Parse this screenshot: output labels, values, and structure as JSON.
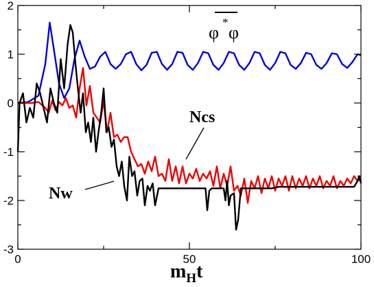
{
  "chart_data": {
    "type": "line",
    "title": "",
    "xlabel": {
      "main": "m",
      "sub": "H",
      "tail": "t"
    },
    "ylabel": "",
    "xlim": [
      0,
      100
    ],
    "ylim": [
      -3,
      2
    ],
    "xticks": [
      0,
      50,
      100
    ],
    "yticks": [
      -3,
      -2,
      -1,
      0,
      1,
      2
    ],
    "grid": false,
    "annotations": {
      "phi_label": "φ*φ",
      "phi_left": "φ",
      "phi_star": "*",
      "phi_right": "φ",
      "ncs": "Ncs",
      "nw": "Nw"
    },
    "series": [
      {
        "key": "phi",
        "color": "#0000dd",
        "x": [
          0,
          3,
          6,
          8,
          9.3,
          10.5,
          12,
          13.5,
          15,
          16.5,
          18,
          19.5,
          21,
          22.5,
          24,
          25.5,
          27,
          28.5,
          30,
          31.5,
          33,
          34.5,
          36,
          37.5,
          39,
          40.5,
          42,
          43.5,
          45,
          46.5,
          48,
          49.5,
          51,
          52.5,
          54,
          55.5,
          57,
          58.5,
          60,
          61.5,
          63,
          64.5,
          66,
          67.5,
          69,
          70.5,
          72,
          73.5,
          75,
          76.5,
          78,
          79.5,
          81,
          82.5,
          84,
          85.5,
          87,
          88.5,
          90,
          91.5,
          93,
          94.5,
          96,
          97.5,
          99,
          100
        ],
        "y": [
          0,
          0.02,
          0.15,
          0.8,
          1.65,
          1.1,
          0.4,
          0.1,
          0.3,
          0.9,
          1.28,
          0.95,
          0.7,
          0.75,
          0.95,
          1.05,
          0.8,
          0.7,
          0.8,
          1.0,
          1.05,
          0.8,
          0.67,
          0.78,
          1.03,
          1.05,
          0.8,
          0.68,
          0.8,
          1.05,
          1.03,
          0.78,
          0.68,
          0.82,
          1.05,
          1.02,
          0.78,
          0.68,
          0.82,
          1.05,
          1.02,
          0.78,
          0.68,
          0.82,
          1.05,
          1.02,
          0.78,
          0.68,
          0.82,
          1.05,
          1.02,
          0.78,
          0.7,
          0.82,
          1.03,
          1.0,
          0.78,
          0.7,
          0.82,
          1.02,
          1.0,
          0.8,
          0.72,
          0.84,
          1.0,
          0.98
        ]
      },
      {
        "key": "ncs",
        "color": "#ee0000",
        "x": [
          0,
          2,
          4,
          6,
          8,
          9,
          10,
          11,
          12,
          13,
          14,
          15,
          16,
          17,
          18,
          19,
          20,
          21,
          22,
          23,
          24,
          25,
          26,
          27,
          28,
          29,
          30,
          31,
          32,
          33,
          34,
          35,
          36,
          37,
          38,
          39,
          40,
          41,
          42,
          43,
          44,
          45,
          46,
          47,
          48,
          49,
          50,
          51,
          52,
          53,
          54,
          55,
          56,
          57,
          58,
          59,
          60,
          61,
          62,
          63,
          64,
          65,
          66,
          67,
          68,
          69,
          70,
          71,
          72,
          73,
          74,
          75,
          76,
          77,
          78,
          79,
          80,
          81,
          82,
          83,
          84,
          85,
          86,
          87,
          88,
          89,
          90,
          91,
          92,
          93,
          94,
          95,
          96,
          97,
          98,
          99,
          100
        ],
        "y": [
          0,
          0,
          0,
          0.02,
          -0.1,
          -0.2,
          0.05,
          -0.15,
          0.02,
          -0.05,
          0.1,
          -0.1,
          -0.05,
          -0.3,
          0.3,
          0.72,
          -0.05,
          0.35,
          -0.2,
          -0.3,
          -0.4,
          0.05,
          -0.6,
          -0.2,
          -0.7,
          -0.65,
          -0.8,
          -0.7,
          -0.7,
          -1.0,
          -1.15,
          -1.3,
          -1.25,
          -1.45,
          -1.2,
          -1.4,
          -1.1,
          -1.5,
          -1.45,
          -1.6,
          -1.15,
          -1.6,
          -1.3,
          -1.65,
          -1.3,
          -1.65,
          -1.45,
          -1.55,
          -1.35,
          -1.6,
          -1.45,
          -1.55,
          -1.4,
          -1.7,
          -1.3,
          -1.75,
          -1.45,
          -1.7,
          -1.3,
          -1.8,
          -1.7,
          -1.9,
          -1.55,
          -2.05,
          -1.6,
          -1.75,
          -1.5,
          -1.85,
          -1.55,
          -1.75,
          -1.5,
          -1.8,
          -1.55,
          -1.7,
          -1.5,
          -1.8,
          -1.5,
          -1.75,
          -1.55,
          -1.7,
          -1.5,
          -1.75,
          -1.55,
          -1.7,
          -1.5,
          -1.75,
          -1.6,
          -1.7,
          -1.5,
          -1.75,
          -1.6,
          -1.7,
          -1.55,
          -1.65,
          -1.5,
          -1.6,
          -1.55
        ]
      },
      {
        "key": "nw",
        "color": "#000000",
        "x": [
          0,
          0.5,
          1.5,
          2.5,
          3.5,
          4.5,
          5.5,
          6.5,
          7.5,
          8.5,
          9.5,
          10.5,
          11.5,
          12.5,
          13.5,
          14.5,
          15.3,
          16,
          16.8,
          17.5,
          18.3,
          19,
          19.8,
          20.5,
          21.3,
          22,
          22.8,
          23.5,
          24.3,
          25,
          25.8,
          26.5,
          27.3,
          28,
          28.8,
          29.5,
          30.3,
          31,
          31.8,
          32.5,
          33.3,
          34,
          34.8,
          35.5,
          36.3,
          37,
          37.8,
          38.5,
          39.3,
          40,
          41,
          42,
          44,
          46,
          48,
          50,
          52,
          54,
          54.7,
          55.2,
          55.8,
          56.5,
          58,
          60,
          60.5,
          61,
          61.5,
          62,
          63,
          63.6,
          64.2,
          65,
          66,
          68,
          70,
          72,
          74,
          76,
          78,
          80,
          82,
          84,
          86,
          88,
          90,
          92,
          94,
          96,
          98,
          99,
          99.5,
          100
        ],
        "y": [
          -1.0,
          0.0,
          0.2,
          -0.4,
          -0.1,
          -0.3,
          0.4,
          0.2,
          -0.1,
          -0.4,
          0.3,
          0.0,
          -0.2,
          0.9,
          0.3,
          1.2,
          1.6,
          1.45,
          0.8,
          0.3,
          -0.2,
          0.2,
          -0.6,
          -0.4,
          -0.8,
          -0.3,
          -1.0,
          -0.6,
          -0.2,
          0.3,
          -0.6,
          -0.5,
          -0.9,
          -0.75,
          -1.3,
          -1.5,
          -1.2,
          -1.7,
          -2.0,
          -1.1,
          -1.5,
          -1.4,
          -1.9,
          -1.6,
          -1.55,
          -2.1,
          -1.7,
          -1.8,
          -1.65,
          -2.1,
          -1.75,
          -1.75,
          -1.75,
          -1.75,
          -1.75,
          -1.75,
          -1.75,
          -1.75,
          -1.75,
          -2.2,
          -1.8,
          -1.75,
          -1.75,
          -1.75,
          -2.0,
          -1.6,
          -2.1,
          -1.9,
          -1.85,
          -2.6,
          -2.4,
          -1.75,
          -1.75,
          -1.75,
          -1.75,
          -1.75,
          -1.75,
          -1.72,
          -1.72,
          -1.72,
          -1.72,
          -1.72,
          -1.72,
          -1.72,
          -1.72,
          -1.72,
          -1.72,
          -1.72,
          -1.72,
          -1.6,
          -1.5,
          -1.65
        ]
      }
    ]
  }
}
